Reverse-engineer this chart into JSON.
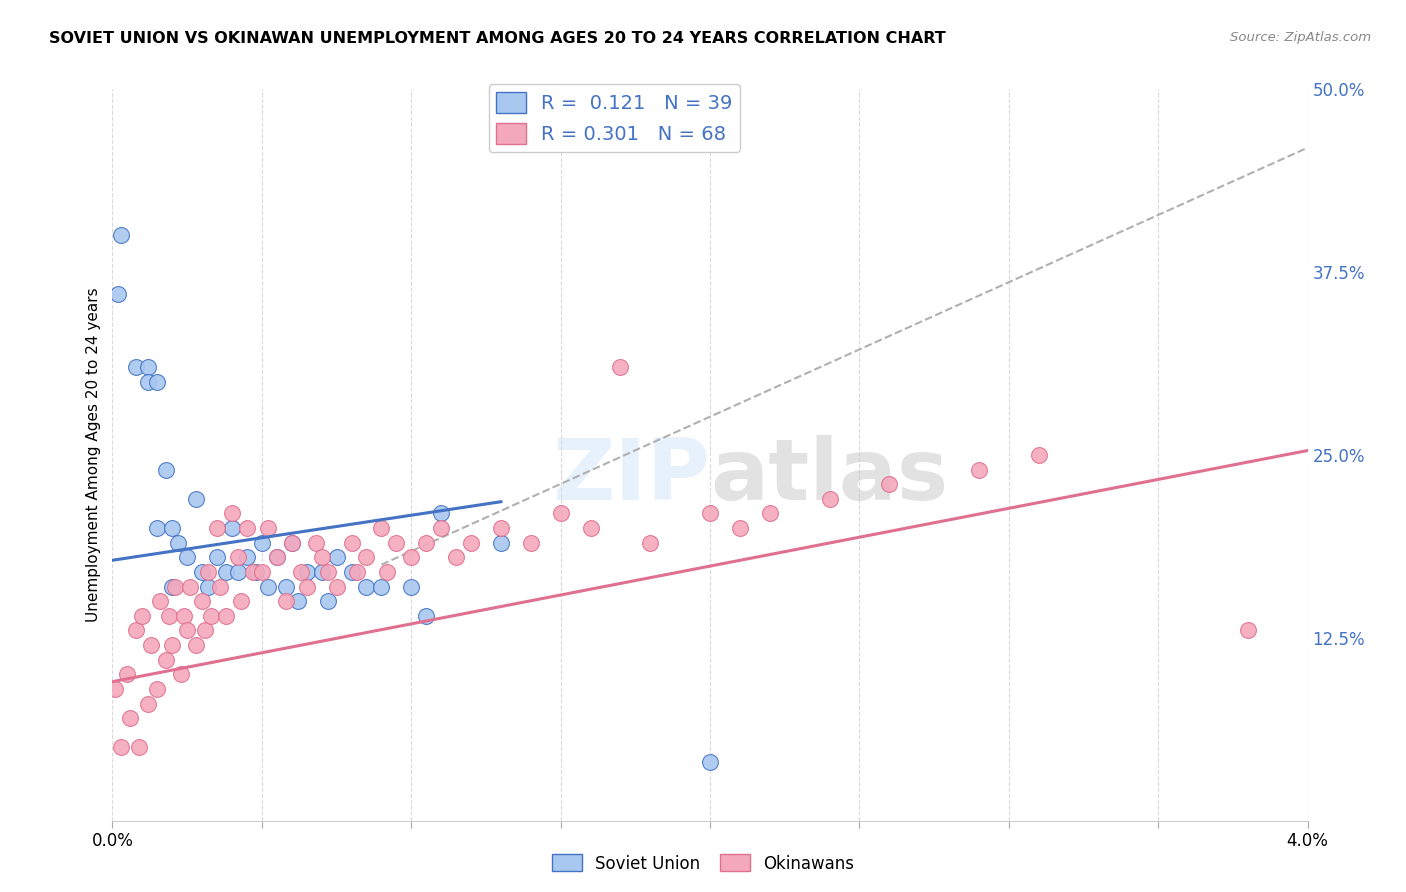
{
  "title": "SOVIET UNION VS OKINAWAN UNEMPLOYMENT AMONG AGES 20 TO 24 YEARS CORRELATION CHART",
  "source": "Source: ZipAtlas.com",
  "ylabel": "Unemployment Among Ages 20 to 24 years",
  "xlim": [
    0.0,
    0.04
  ],
  "ylim": [
    0.0,
    0.5
  ],
  "ytick_right_labels": [
    "50.0%",
    "37.5%",
    "25.0%",
    "12.5%"
  ],
  "ytick_right_values": [
    0.5,
    0.375,
    0.25,
    0.125
  ],
  "soviet_color": "#a8c8f0",
  "okinawan_color": "#f4a8bc",
  "soviet_line_color": "#4472c4",
  "okinawan_line_color": "#e07090",
  "dashed_line_color": "#b0b0b0",
  "legend_text_color": "#4472c4",
  "soviet_R": 0.121,
  "soviet_N": 39,
  "okinawan_R": 0.301,
  "okinawan_N": 68,
  "watermark": "ZIPatlas",
  "grid_color": "#d0d0d0",
  "background_color": "#ffffff",
  "soviet_x": [
    0.0002,
    0.0003,
    0.0008,
    0.0012,
    0.0012,
    0.0015,
    0.0015,
    0.0018,
    0.002,
    0.002,
    0.0022,
    0.0025,
    0.0028,
    0.003,
    0.0032,
    0.0035,
    0.0038,
    0.004,
    0.0042,
    0.0045,
    0.0048,
    0.005,
    0.0052,
    0.0055,
    0.0058,
    0.006,
    0.0062,
    0.0065,
    0.007,
    0.0072,
    0.0075,
    0.008,
    0.0085,
    0.009,
    0.01,
    0.0105,
    0.011,
    0.013,
    0.02
  ],
  "soviet_y": [
    0.36,
    0.4,
    0.31,
    0.31,
    0.3,
    0.3,
    0.2,
    0.24,
    0.2,
    0.16,
    0.19,
    0.18,
    0.22,
    0.17,
    0.16,
    0.18,
    0.17,
    0.2,
    0.17,
    0.18,
    0.17,
    0.19,
    0.16,
    0.18,
    0.16,
    0.19,
    0.15,
    0.17,
    0.17,
    0.15,
    0.18,
    0.17,
    0.16,
    0.16,
    0.16,
    0.14,
    0.21,
    0.19,
    0.04
  ],
  "okinawan_x": [
    0.0001,
    0.0003,
    0.0005,
    0.0006,
    0.0008,
    0.0009,
    0.001,
    0.0012,
    0.0013,
    0.0015,
    0.0016,
    0.0018,
    0.0019,
    0.002,
    0.0021,
    0.0023,
    0.0024,
    0.0025,
    0.0026,
    0.0028,
    0.003,
    0.0031,
    0.0032,
    0.0033,
    0.0035,
    0.0036,
    0.0038,
    0.004,
    0.0042,
    0.0043,
    0.0045,
    0.0047,
    0.005,
    0.0052,
    0.0055,
    0.0058,
    0.006,
    0.0063,
    0.0065,
    0.0068,
    0.007,
    0.0072,
    0.0075,
    0.008,
    0.0082,
    0.0085,
    0.009,
    0.0092,
    0.0095,
    0.01,
    0.0105,
    0.011,
    0.0115,
    0.012,
    0.013,
    0.014,
    0.015,
    0.016,
    0.017,
    0.018,
    0.02,
    0.021,
    0.022,
    0.024,
    0.026,
    0.029,
    0.031,
    0.038
  ],
  "okinawan_y": [
    0.09,
    0.05,
    0.1,
    0.07,
    0.13,
    0.05,
    0.14,
    0.08,
    0.12,
    0.09,
    0.15,
    0.11,
    0.14,
    0.12,
    0.16,
    0.1,
    0.14,
    0.13,
    0.16,
    0.12,
    0.15,
    0.13,
    0.17,
    0.14,
    0.2,
    0.16,
    0.14,
    0.21,
    0.18,
    0.15,
    0.2,
    0.17,
    0.17,
    0.2,
    0.18,
    0.15,
    0.19,
    0.17,
    0.16,
    0.19,
    0.18,
    0.17,
    0.16,
    0.19,
    0.17,
    0.18,
    0.2,
    0.17,
    0.19,
    0.18,
    0.19,
    0.2,
    0.18,
    0.19,
    0.2,
    0.19,
    0.21,
    0.2,
    0.31,
    0.19,
    0.21,
    0.2,
    0.21,
    0.22,
    0.23,
    0.24,
    0.25,
    0.13
  ],
  "soviet_line_x": [
    0.0,
    0.013
  ],
  "soviet_line_y": [
    0.178,
    0.218
  ],
  "okinawan_line_x": [
    0.0,
    0.04
  ],
  "okinawan_line_y": [
    0.095,
    0.253
  ],
  "dashed_line_x": [
    0.009,
    0.04
  ],
  "dashed_line_y": [
    0.175,
    0.46
  ]
}
